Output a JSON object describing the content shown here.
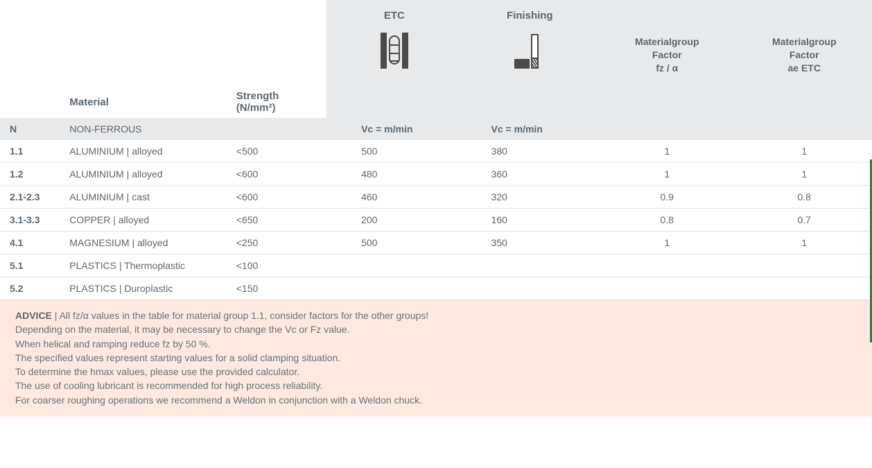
{
  "header": {
    "etc": "ETC",
    "finishing": "Finishing",
    "factor1_line1": "Materialgroup",
    "factor1_line2": "Factor",
    "factor1_line3": "fz / α",
    "factor2_line1": "Materialgroup",
    "factor2_line2": "Factor",
    "factor2_line3": "ae ETC",
    "material": "Material",
    "strength_line1": "Strength",
    "strength_line2": "(N/mm²)"
  },
  "group": {
    "code": "N",
    "name": "NON-FERROUS",
    "vc_etc": "Vc = m/min",
    "vc_fin": "Vc = m/min"
  },
  "rows": [
    {
      "code": "1.1",
      "material": "ALUMINIUM |  alloyed",
      "strength": "<500",
      "etc": "500",
      "fin": "380",
      "f1": "1",
      "f2": "1"
    },
    {
      "code": "1.2",
      "material": "ALUMINIUM | alloyed",
      "strength": "<600",
      "etc": "480",
      "fin": "360",
      "f1": "1",
      "f2": "1"
    },
    {
      "code": "2.1-2.3",
      "material": "ALUMINIUM | cast",
      "strength": "<600",
      "etc": "460",
      "fin": "320",
      "f1": "0.9",
      "f2": "0.8"
    },
    {
      "code": "3.1-3.3",
      "material": "COPPER | alloyed",
      "strength": "<650",
      "etc": "200",
      "fin": "160",
      "f1": "0.8",
      "f2": "0.7"
    },
    {
      "code": "4.1",
      "material": "MAGNESIUM | alloyed",
      "strength": "<250",
      "etc": "500",
      "fin": "350",
      "f1": "1",
      "f2": "1"
    },
    {
      "code": "5.1",
      "material": "PLASTICS | Thermoplastic",
      "strength": "<100",
      "etc": "",
      "fin": "",
      "f1": "",
      "f2": ""
    },
    {
      "code": "5.2",
      "material": "PLASTICS | Duroplastic",
      "strength": "<150",
      "etc": "",
      "fin": "",
      "f1": "",
      "f2": ""
    }
  ],
  "advice": {
    "title": "ADVICE",
    "sep": "  |  ",
    "l1": "All fz/α values in the table for material group 1.1, consider factors for the other groups!",
    "l2": "Depending on the material, it may be necessary to change the Vc or Fz value.",
    "l3": "When helical and ramping reduce fz by 50 %.",
    "l4": "The specified values represent starting values for a solid clamping situation.",
    "l5": "To determine the hmax values, please use the provided calculator.",
    "l6": "The use of cooling lubricant is recommended for high process reliability.",
    "l7": "For coarser roughing operations we recommend a Weldon in conjunction with a Weldon chuck."
  }
}
